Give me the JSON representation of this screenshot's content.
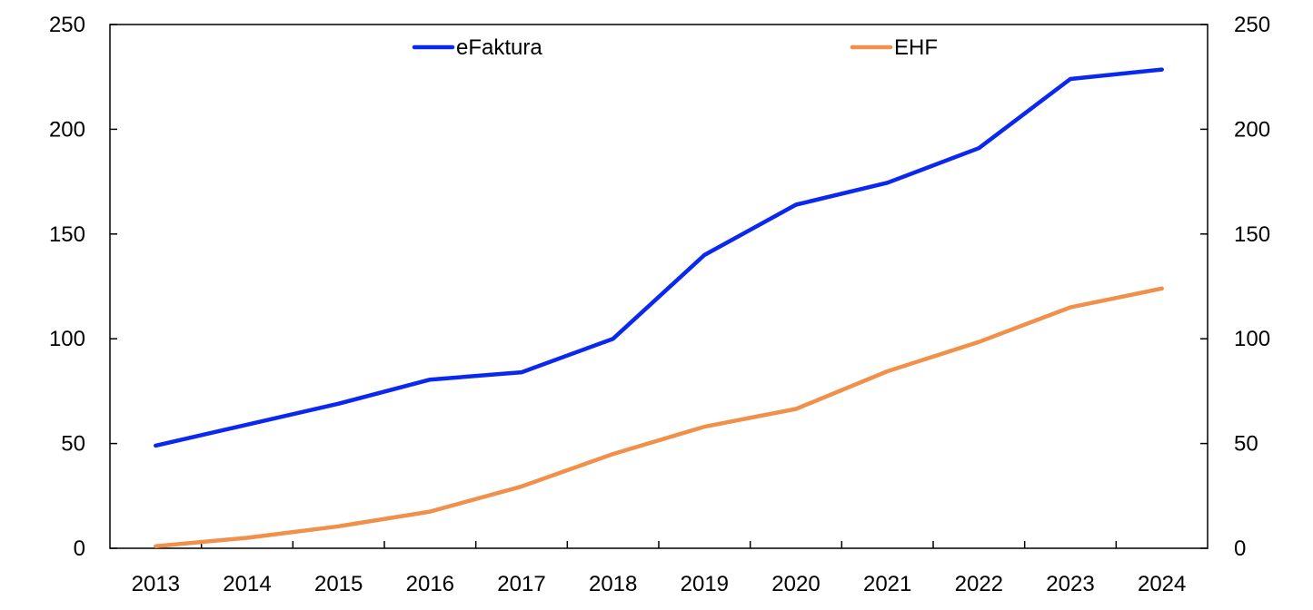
{
  "chart_data": {
    "type": "line",
    "title": "",
    "xlabel": "",
    "ylabel": "",
    "categories": [
      "2013",
      "2014",
      "2015",
      "2016",
      "2017",
      "2018",
      "2019",
      "2020",
      "2021",
      "2022",
      "2023",
      "2024"
    ],
    "ylim": [
      0,
      250
    ],
    "y_ticks": [
      0,
      50,
      100,
      150,
      200,
      250
    ],
    "secondary_axis_ticks": [
      0,
      50,
      100,
      150,
      200,
      250
    ],
    "grid": false,
    "legend_position": "top",
    "series": [
      {
        "name": "eFaktura",
        "color": "#0a28f0",
        "values": [
          49,
          59,
          69,
          80.5,
          84,
          100,
          140,
          164,
          174.5,
          191,
          224,
          228.5
        ]
      },
      {
        "name": "EHF",
        "color": "#f0904a",
        "values": [
          1,
          5,
          10.5,
          17.5,
          29.5,
          45,
          58,
          66.5,
          84.5,
          98.5,
          115,
          124
        ]
      }
    ]
  }
}
